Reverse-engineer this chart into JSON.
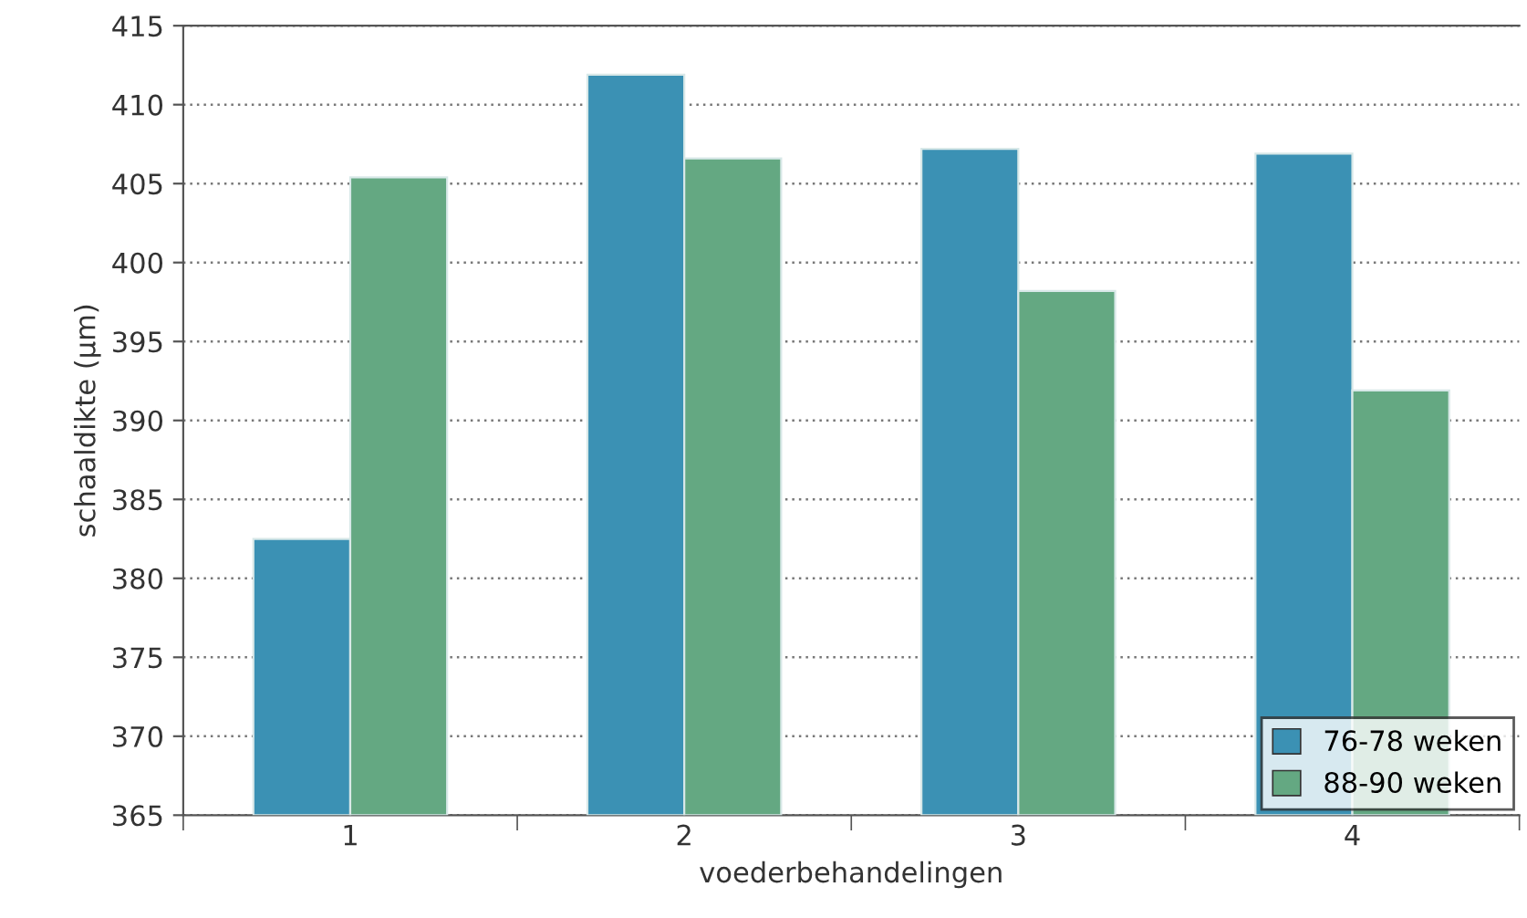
{
  "chart_data": {
    "type": "bar",
    "xlabel": "voederbehandelingen",
    "ylabel": "schaaldikte (µm)",
    "categories": [
      "1",
      "2",
      "3",
      "4"
    ],
    "series": [
      {
        "name": "76-78 weken",
        "color": "#3b91b4",
        "values": [
          382.5,
          411.9,
          407.2,
          406.9
        ]
      },
      {
        "name": "88-90 weken",
        "color": "#64a882",
        "values": [
          405.4,
          406.6,
          398.2,
          391.9
        ]
      }
    ],
    "ylim": [
      365,
      415
    ],
    "yticks": [
      365,
      370,
      375,
      380,
      385,
      390,
      395,
      400,
      405,
      410,
      415
    ],
    "grid": "y",
    "legend": "bottom right"
  }
}
